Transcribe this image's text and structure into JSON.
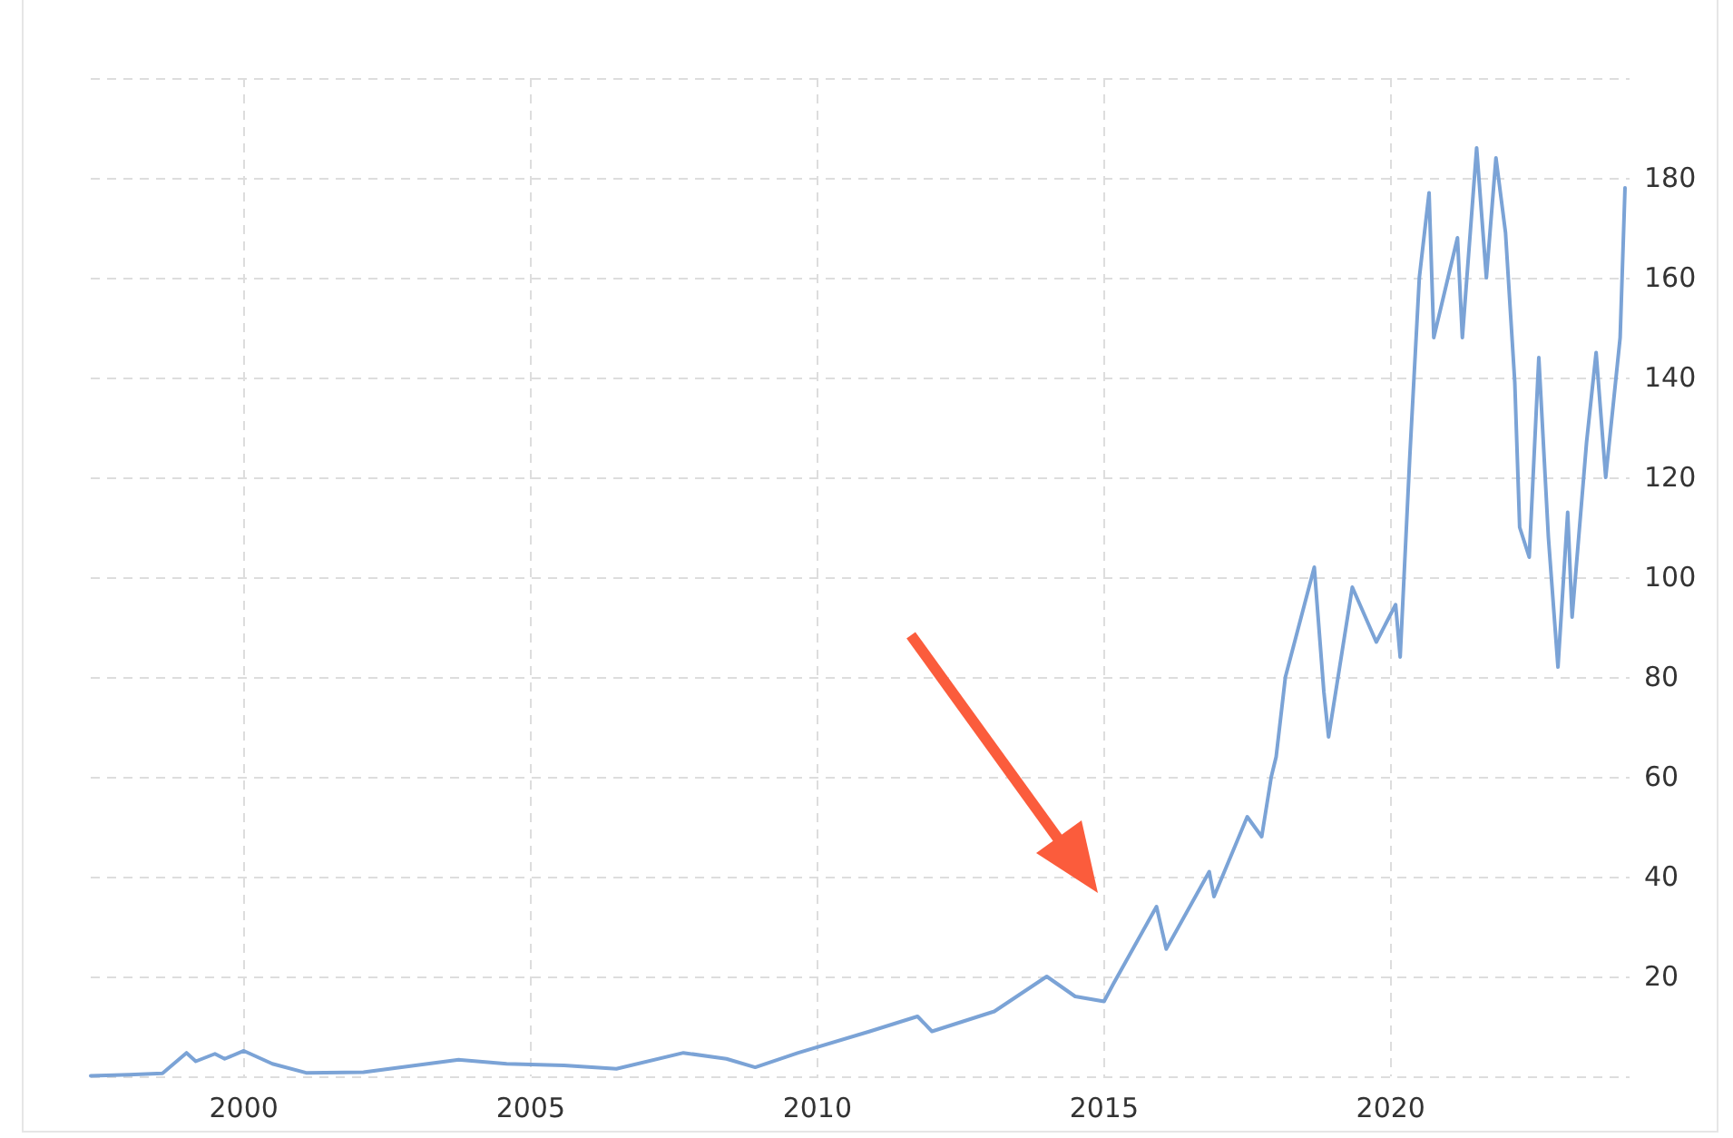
{
  "chart_data": {
    "type": "line",
    "x": [
      "1997-05",
      "1998-01",
      "1998-08",
      "1999-01",
      "1999-03",
      "1999-07",
      "1999-09",
      "2000-01",
      "2000-07",
      "2001-02",
      "2002-02",
      "2003-10",
      "2004-08",
      "2005-08",
      "2006-07",
      "2007-09",
      "2008-06",
      "2008-12",
      "2009-09",
      "2010-12",
      "2011-10",
      "2012-01",
      "2013-02",
      "2014-01",
      "2014-07",
      "2015-01",
      "2015-03",
      "2015-12",
      "2016-02",
      "2016-11",
      "2016-12",
      "2017-07",
      "2017-10",
      "2017-12",
      "2018-01",
      "2018-03",
      "2018-09",
      "2018-11",
      "2018-12",
      "2019-05",
      "2019-10",
      "2020-02",
      "2020-03",
      "2020-05",
      "2020-07",
      "2020-09",
      "2020-10",
      "2021-03",
      "2021-04",
      "2021-07",
      "2021-09",
      "2021-11",
      "2022-01",
      "2022-03",
      "2022-04",
      "2022-06",
      "2022-08",
      "2022-10",
      "2022-12",
      "2023-02",
      "2023-03",
      "2023-06",
      "2023-08",
      "2023-10",
      "2024-01",
      "2024-02"
    ],
    "series": [
      {
        "color": "#7ba3d6",
        "values": [
          0.1,
          0.3,
          0.6,
          4.7,
          3,
          4.5,
          3.5,
          5.1,
          2.5,
          0.7,
          0.8,
          3.3,
          2.5,
          2.2,
          1.5,
          4.7,
          3.5,
          1.8,
          4.7,
          9,
          12,
          9,
          13,
          20,
          16,
          15,
          18.5,
          34,
          25.5,
          41,
          36,
          52,
          48,
          60,
          64,
          80,
          102,
          77,
          68,
          98,
          87,
          94.5,
          84,
          124,
          160,
          177,
          148,
          168,
          148,
          186,
          160,
          184,
          169,
          139,
          110,
          104,
          144,
          108,
          82,
          113,
          92,
          127,
          145,
          120,
          148,
          178
        ]
      }
    ],
    "xlim": [
      "1997-05",
      "2024-03"
    ],
    "xticks": [
      "2000",
      "2005",
      "2010",
      "2015",
      "2020"
    ],
    "ylim": [
      0,
      200
    ],
    "yticks": [
      {
        "value": 0,
        "label": null
      },
      20,
      40,
      60,
      80,
      100,
      120,
      140,
      160,
      180,
      {
        "value": 200,
        "label": null
      }
    ],
    "grid": true,
    "marker": "none",
    "line_style": "solid"
  }
}
